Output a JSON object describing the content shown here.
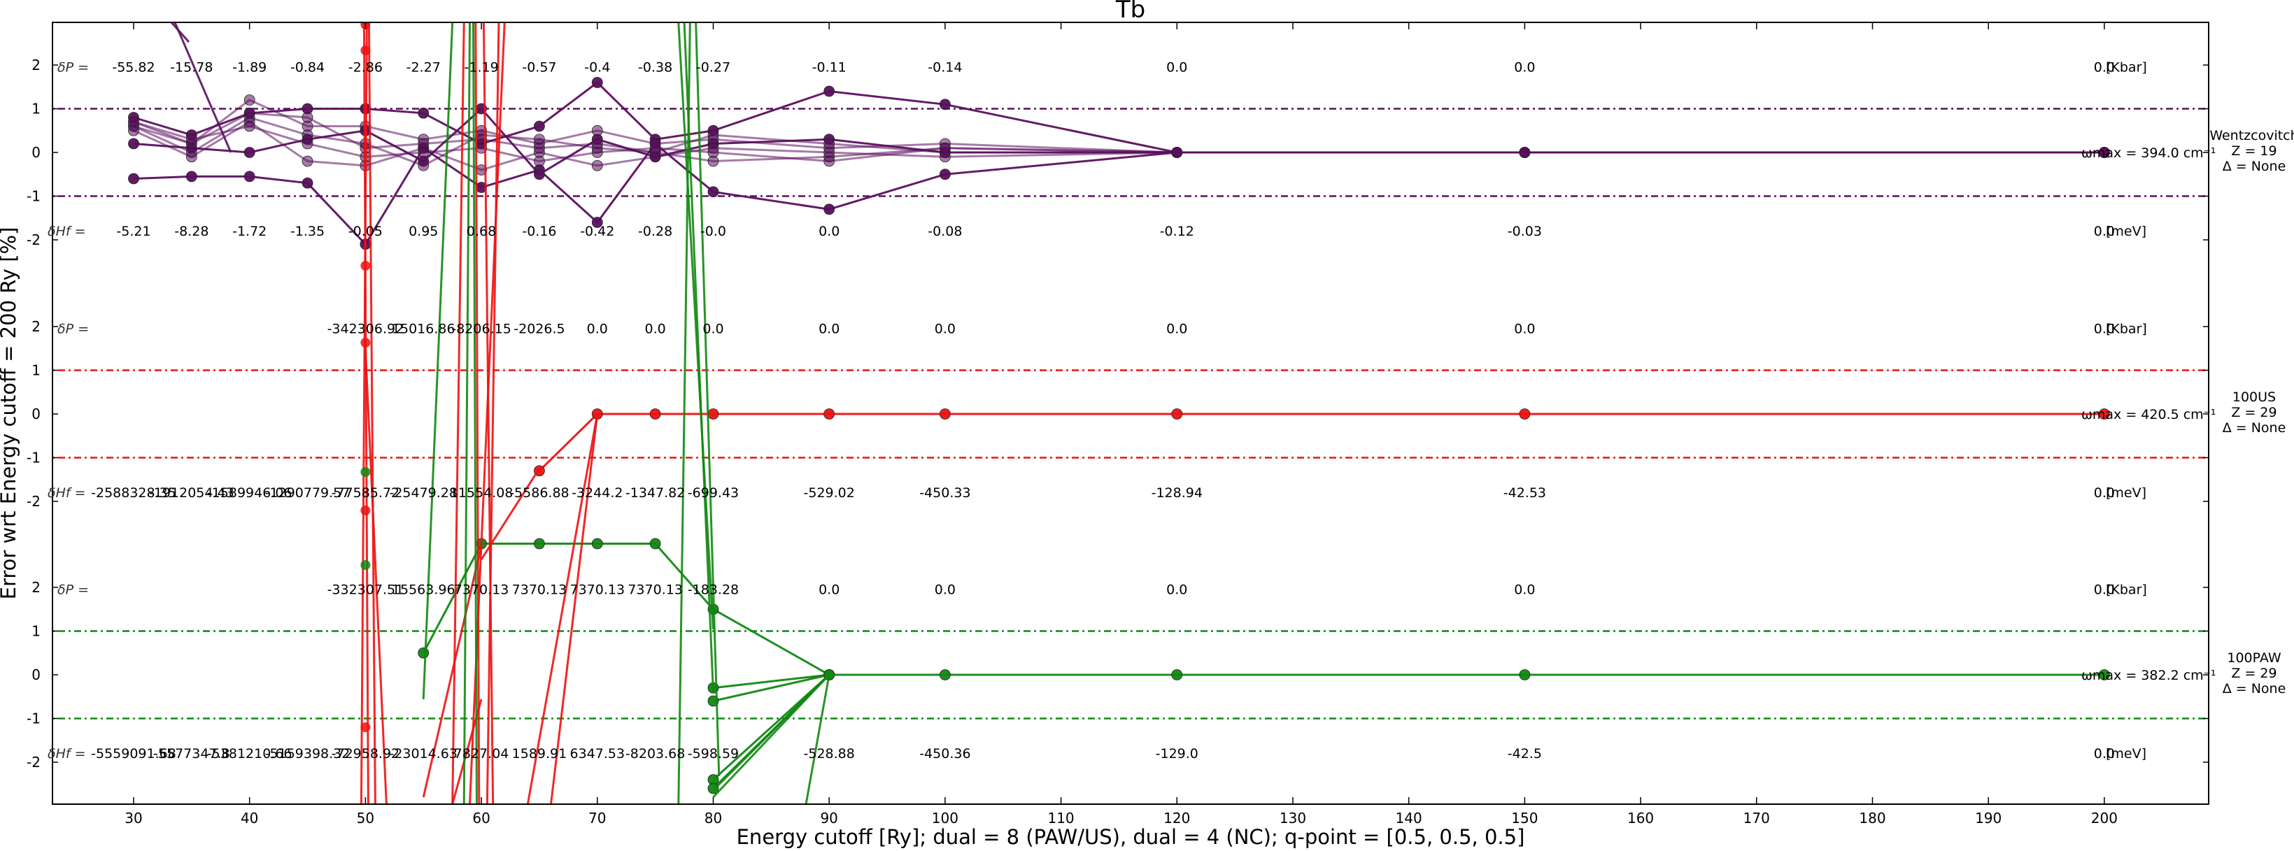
{
  "chart_data": {
    "type": "line",
    "title": "Tb",
    "xlabel": "Energy cutoff [Ry]; dual = 8 (PAW/US), dual = 4 (NC); q-point = [0.5, 0.5, 0.5]",
    "ylabel": "Error wrt Energy cutoff = 200 Ry [%]",
    "xlim": [
      23,
      209
    ],
    "x_ticks": [
      30,
      40,
      50,
      60,
      70,
      80,
      90,
      100,
      110,
      120,
      130,
      140,
      150,
      160,
      170,
      180,
      190,
      200
    ],
    "y_tick_labels": [
      "2",
      "1",
      "0",
      "-1",
      "-2"
    ],
    "ylim_per_panel": [
      -3,
      3
    ],
    "grid": false,
    "panels": [
      {
        "name": "Wentzcovitch",
        "color": "#5b0f5e",
        "side_label": [
          "Wentzcovitch",
          "Z = 19",
          "Δ = None"
        ],
        "omega_label": "ωmax = 394.0 cm⁻¹",
        "x": [
          30,
          35,
          40,
          45,
          50,
          55,
          60,
          65,
          70,
          75,
          80,
          90,
          100,
          120,
          150,
          200
        ],
        "dP_label": "δP =",
        "dP_unit": "[Kbar]",
        "dP": [
          "-55.82",
          "-15.78",
          "-1.89",
          "-0.84",
          "-2.86",
          "-2.27",
          "-1.19",
          "-0.57",
          "-0.4",
          "-0.38",
          "-0.27",
          "-0.11",
          "-0.14",
          "0.0",
          "0.0",
          "0.0"
        ],
        "dH_label": "δHf =",
        "dH_unit": "[meV]",
        "dH": [
          "-5.21",
          "-8.28",
          "-1.72",
          "-1.35",
          "-0.05",
          "0.95",
          "0.68",
          "-0.16",
          "-0.42",
          "-0.28",
          "-0.0",
          "0.0",
          "-0.08",
          "-0.12",
          "-0.03",
          "0.0"
        ],
        "series": [
          {
            "values": [
              0.8,
              0.4,
              0.9,
              1.0,
              1.0,
              0.9,
              0.2,
              0.6,
              1.6,
              0.3,
              0.5,
              1.4,
              1.1,
              0.0,
              0.0,
              0.0
            ]
          },
          {
            "values": [
              -0.6,
              -0.55,
              -0.55,
              -0.7,
              -2.1,
              0.1,
              -0.8,
              -0.4,
              -1.6,
              0.2,
              -0.9,
              -1.3,
              -0.5,
              0.0,
              0.0,
              0.0
            ]
          },
          {
            "values": [
              0.2,
              0.1,
              0.0,
              0.3,
              0.5,
              -0.2,
              1.0,
              -0.5,
              0.3,
              -0.1,
              0.2,
              0.3,
              0.0,
              0.0,
              0.0,
              0.0
            ]
          },
          {
            "values": [
              0.7,
              0.2,
              1.2,
              0.6,
              0.6,
              0.3,
              0.5,
              0.2,
              0.5,
              0.2,
              0.3,
              0.1,
              0.2,
              0.0,
              0.0,
              0.0
            ]
          },
          {
            "values": [
              0.6,
              0.0,
              0.8,
              0.4,
              0.2,
              -0.3,
              0.4,
              0.3,
              0.1,
              0.0,
              -0.2,
              -0.1,
              0.1,
              0.0,
              0.0,
              0.0
            ]
          },
          {
            "values": [
              0.5,
              -0.1,
              0.7,
              -0.2,
              -0.3,
              0.1,
              -0.4,
              0.0,
              -0.3,
              -0.1,
              0.1,
              0.0,
              -0.1,
              0.0,
              0.0,
              0.0
            ]
          },
          {
            "values": [
              0.6,
              0.2,
              0.9,
              0.8,
              0.1,
              0.2,
              0.3,
              0.1,
              0.2,
              0.0,
              0.4,
              0.2,
              0.0,
              0.0,
              0.0,
              0.0
            ]
          },
          {
            "values": [
              0.7,
              0.3,
              0.6,
              0.2,
              -0.1,
              0.0,
              0.1,
              -0.2,
              0.0,
              0.1,
              0.0,
              -0.2,
              0.1,
              0.0,
              0.0,
              0.0
            ]
          }
        ]
      },
      {
        "name": "100US",
        "color": "#ee1111",
        "side_label": [
          "100US",
          "Z = 29",
          "Δ = None"
        ],
        "omega_label": "ωmax = 420.5 cm⁻¹",
        "dP_label": "δP =",
        "dP_unit": "[Kbar]",
        "dP_x": [
          50,
          55,
          60,
          65,
          70,
          75,
          80,
          90,
          100,
          120,
          150,
          200
        ],
        "dP": [
          "-342306.92",
          "15016.86",
          "-8206.15",
          "-2026.5",
          "0.0",
          "0.0",
          "0.0",
          "0.0",
          "0.0",
          "0.0",
          "0.0",
          "0.0"
        ],
        "dH_label": "δHf =",
        "dH_unit": "[meV]",
        "dH_x": [
          30,
          35,
          40,
          45,
          50,
          55,
          60,
          65,
          70,
          75,
          80,
          90,
          100,
          120,
          150,
          200
        ],
        "dH": [
          "-2588328.35",
          "-1912054.43",
          "-1589946.06",
          "-1290779.57",
          "-77585.72",
          "-25479.28",
          "11554.08",
          "-5586.88",
          "-3244.2",
          "-1347.82",
          "-699.43",
          "-529.02",
          "-450.33",
          "-128.94",
          "-42.53",
          "0.0"
        ],
        "series": [
          {
            "x": [
              65,
              70,
              75,
              80,
              90,
              100,
              120,
              150,
              200
            ],
            "values": [
              -1.3,
              0.0,
              0.0,
              0.0,
              0.0,
              0.0,
              0.0,
              0.0,
              0.0
            ]
          }
        ]
      },
      {
        "name": "100PAW",
        "color": "#118811",
        "side_label": [
          "100PAW",
          "Z = 29",
          "Δ = None"
        ],
        "omega_label": "ωmax = 382.2 cm⁻¹",
        "dP_label": "δP =",
        "dP_unit": "[Kbar]",
        "dP_x": [
          50,
          55,
          60,
          65,
          70,
          75,
          80,
          90,
          100,
          120,
          150,
          200
        ],
        "dP": [
          "-332307.51",
          "15563.96",
          "7370.13",
          "7370.13",
          "7370.13",
          "7370.13",
          "-183.28",
          "0.0",
          "0.0",
          "0.0",
          "0.0",
          "0.0"
        ],
        "dH_label": "δHf =",
        "dH_unit": "[meV]",
        "dH_x": [
          30,
          35,
          40,
          45,
          50,
          55,
          60,
          65,
          70,
          75,
          80,
          90,
          100,
          120,
          150,
          200
        ],
        "dH": [
          "-5559091.68",
          "-5577347.8",
          "-5381210.66",
          "-5159398.32",
          "-72958.92",
          "-23014.63",
          "7827.04",
          "1589.91",
          "6347.53",
          "-8203.68",
          "-598.59",
          "-528.88",
          "-450.36",
          "-129.0",
          "-42.5",
          "0.0"
        ],
        "series": [
          {
            "x": [
              55,
              60,
              65,
              70,
              75,
              80,
              90,
              100,
              120,
              150,
              200
            ],
            "values": [
              0.5,
              3.0,
              3.0,
              3.0,
              3.0,
              1.5,
              0.0,
              0.0,
              0.0,
              0.0,
              0.0
            ]
          },
          {
            "x": [
              80,
              90
            ],
            "values": [
              -0.3,
              0.0
            ]
          },
          {
            "x": [
              80,
              90
            ],
            "values": [
              -0.6,
              0.0
            ]
          },
          {
            "x": [
              80,
              90
            ],
            "values": [
              -2.4,
              0.0
            ]
          },
          {
            "x": [
              80,
              90
            ],
            "values": [
              -2.6,
              0.0
            ]
          }
        ]
      }
    ]
  }
}
